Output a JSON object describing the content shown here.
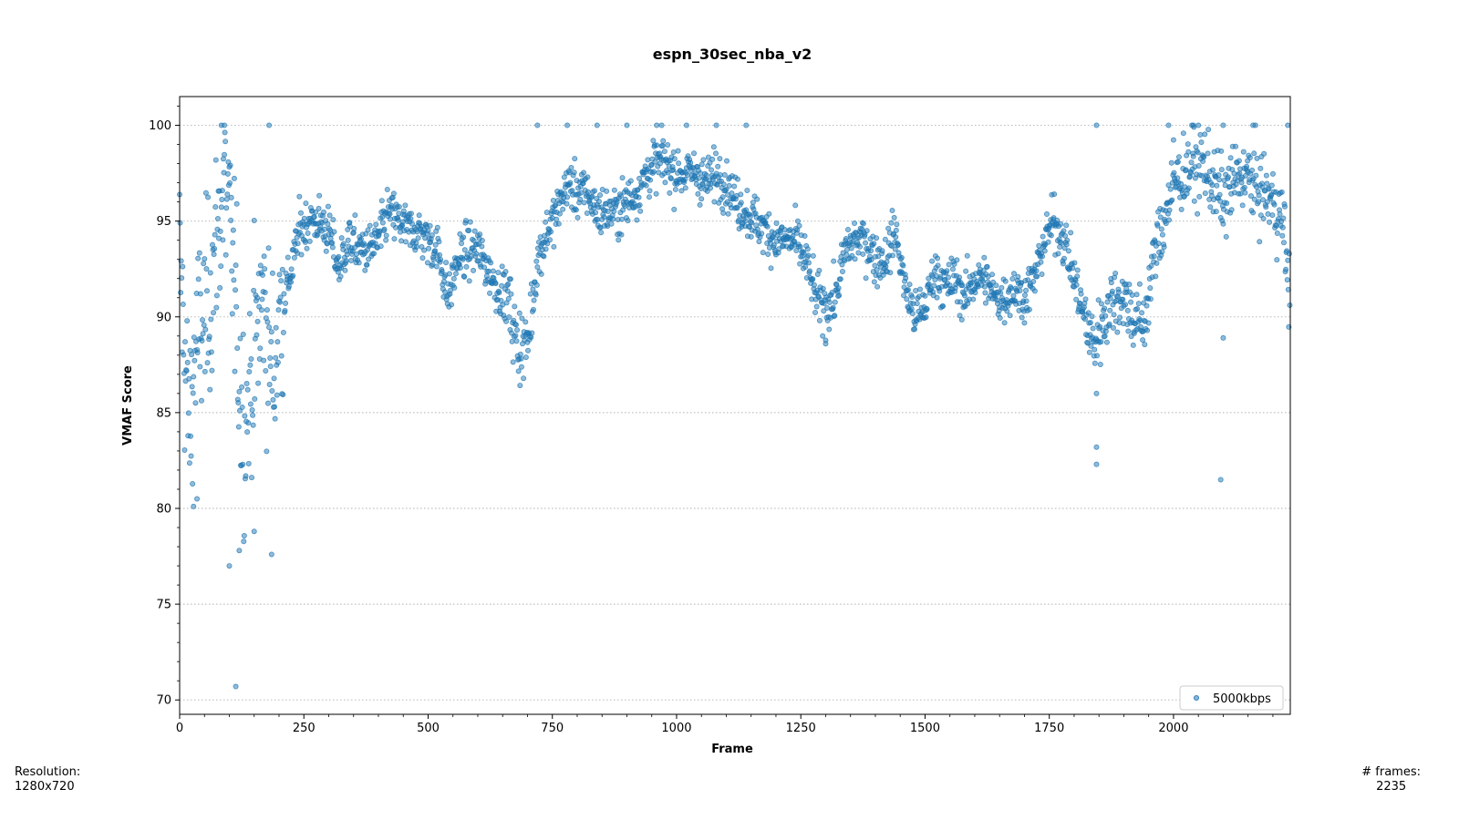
{
  "chart_data": {
    "type": "scatter",
    "title": "espn_30sec_nba_v2",
    "xlabel": "Frame",
    "ylabel": "VMAF Score",
    "xlim": [
      0,
      2235
    ],
    "ylim": [
      69.25,
      101.5
    ],
    "x_ticks": [
      0,
      250,
      500,
      750,
      1000,
      1250,
      1500,
      1750,
      2000
    ],
    "y_ticks": [
      70,
      75,
      80,
      85,
      90,
      95,
      100
    ],
    "grid": "horizontal dotted",
    "legend_position": "bottom-right",
    "color": "#1f77b4",
    "series": [
      {
        "name": "5000kbps",
        "anchors": [
          [
            0,
            93
          ],
          [
            10,
            88
          ],
          [
            20,
            84
          ],
          [
            30,
            88
          ],
          [
            40,
            89
          ],
          [
            50,
            90
          ],
          [
            60,
            91
          ],
          [
            70,
            93
          ],
          [
            80,
            95
          ],
          [
            90,
            97
          ],
          [
            100,
            95
          ],
          [
            110,
            92
          ],
          [
            120,
            87
          ],
          [
            130,
            84
          ],
          [
            140,
            86
          ],
          [
            150,
            88
          ],
          [
            160,
            90
          ],
          [
            170,
            91
          ],
          [
            180,
            88
          ],
          [
            190,
            87
          ],
          [
            200,
            90
          ],
          [
            210,
            91
          ],
          [
            220,
            92
          ],
          [
            230,
            93
          ],
          [
            240,
            94.5
          ],
          [
            260,
            95
          ],
          [
            280,
            95
          ],
          [
            300,
            94.5
          ],
          [
            320,
            92.5
          ],
          [
            340,
            94
          ],
          [
            360,
            93.5
          ],
          [
            380,
            93.5
          ],
          [
            400,
            94
          ],
          [
            420,
            95.5
          ],
          [
            440,
            95
          ],
          [
            460,
            94.5
          ],
          [
            480,
            94.5
          ],
          [
            500,
            94
          ],
          [
            520,
            93.5
          ],
          [
            540,
            91
          ],
          [
            560,
            93
          ],
          [
            580,
            93.5
          ],
          [
            600,
            93.5
          ],
          [
            620,
            92.5
          ],
          [
            640,
            91.5
          ],
          [
            660,
            91
          ],
          [
            680,
            88.5
          ],
          [
            700,
            88.5
          ],
          [
            720,
            93
          ],
          [
            740,
            94.5
          ],
          [
            760,
            95.5
          ],
          [
            780,
            97
          ],
          [
            800,
            96.5
          ],
          [
            820,
            96.5
          ],
          [
            840,
            95.5
          ],
          [
            860,
            95.5
          ],
          [
            880,
            95.5
          ],
          [
            900,
            96
          ],
          [
            920,
            96.5
          ],
          [
            940,
            97.5
          ],
          [
            960,
            98
          ],
          [
            980,
            98
          ],
          [
            1000,
            97.5
          ],
          [
            1020,
            97.5
          ],
          [
            1040,
            97.5
          ],
          [
            1060,
            97
          ],
          [
            1080,
            97.5
          ],
          [
            1100,
            97
          ],
          [
            1120,
            96
          ],
          [
            1140,
            95.5
          ],
          [
            1160,
            95
          ],
          [
            1180,
            94.5
          ],
          [
            1200,
            94
          ],
          [
            1220,
            94
          ],
          [
            1240,
            94
          ],
          [
            1260,
            93
          ],
          [
            1280,
            91
          ],
          [
            1300,
            90.5
          ],
          [
            1320,
            91
          ],
          [
            1340,
            93.5
          ],
          [
            1360,
            94
          ],
          [
            1380,
            94
          ],
          [
            1400,
            93
          ],
          [
            1420,
            93
          ],
          [
            1440,
            94.5
          ],
          [
            1460,
            91.5
          ],
          [
            1480,
            90
          ],
          [
            1500,
            90.5
          ],
          [
            1520,
            92.5
          ],
          [
            1540,
            91.5
          ],
          [
            1560,
            92
          ],
          [
            1580,
            91
          ],
          [
            1600,
            92
          ],
          [
            1620,
            92
          ],
          [
            1640,
            91
          ],
          [
            1660,
            91
          ],
          [
            1680,
            91.5
          ],
          [
            1700,
            91
          ],
          [
            1720,
            92
          ],
          [
            1740,
            94
          ],
          [
            1760,
            95
          ],
          [
            1780,
            94
          ],
          [
            1800,
            92
          ],
          [
            1820,
            90
          ],
          [
            1840,
            88.5
          ],
          [
            1860,
            90
          ],
          [
            1880,
            91
          ],
          [
            1900,
            91
          ],
          [
            1920,
            90
          ],
          [
            1940,
            89.5
          ],
          [
            1960,
            93
          ],
          [
            1980,
            95
          ],
          [
            2000,
            97
          ],
          [
            2020,
            97.5
          ],
          [
            2040,
            98
          ],
          [
            2060,
            98
          ],
          [
            2080,
            97
          ],
          [
            2100,
            96
          ],
          [
            2120,
            97
          ],
          [
            2140,
            97.5
          ],
          [
            2160,
            97
          ],
          [
            2180,
            96.5
          ],
          [
            2200,
            96
          ],
          [
            2220,
            95
          ],
          [
            2235,
            91
          ]
        ],
        "outliers": [
          [
            84,
            100
          ],
          [
            90,
            100
          ],
          [
            180,
            100
          ],
          [
            720,
            100
          ],
          [
            780,
            100
          ],
          [
            840,
            100
          ],
          [
            900,
            100
          ],
          [
            960,
            100
          ],
          [
            970,
            100
          ],
          [
            1020,
            100
          ],
          [
            1080,
            100
          ],
          [
            1140,
            100
          ],
          [
            1845,
            100
          ],
          [
            1990,
            100
          ],
          [
            2040,
            100
          ],
          [
            2100,
            100
          ],
          [
            2160,
            100
          ],
          [
            2230,
            100
          ],
          [
            100,
            77
          ],
          [
            113,
            70.7
          ],
          [
            120,
            77.8
          ],
          [
            185,
            77.6
          ],
          [
            28,
            80.1
          ],
          [
            35,
            80.5
          ],
          [
            150,
            78.8
          ],
          [
            1845,
            83.2
          ],
          [
            1845,
            82.3
          ],
          [
            2095,
            81.5
          ],
          [
            2100,
            88.9
          ],
          [
            1845,
            86
          ],
          [
            1300,
            88.6
          ]
        ]
      }
    ]
  },
  "footer": {
    "resolution_label": "Resolution:",
    "resolution_value": "1280x720",
    "frames_label": "# frames:",
    "frames_value": "2235"
  }
}
